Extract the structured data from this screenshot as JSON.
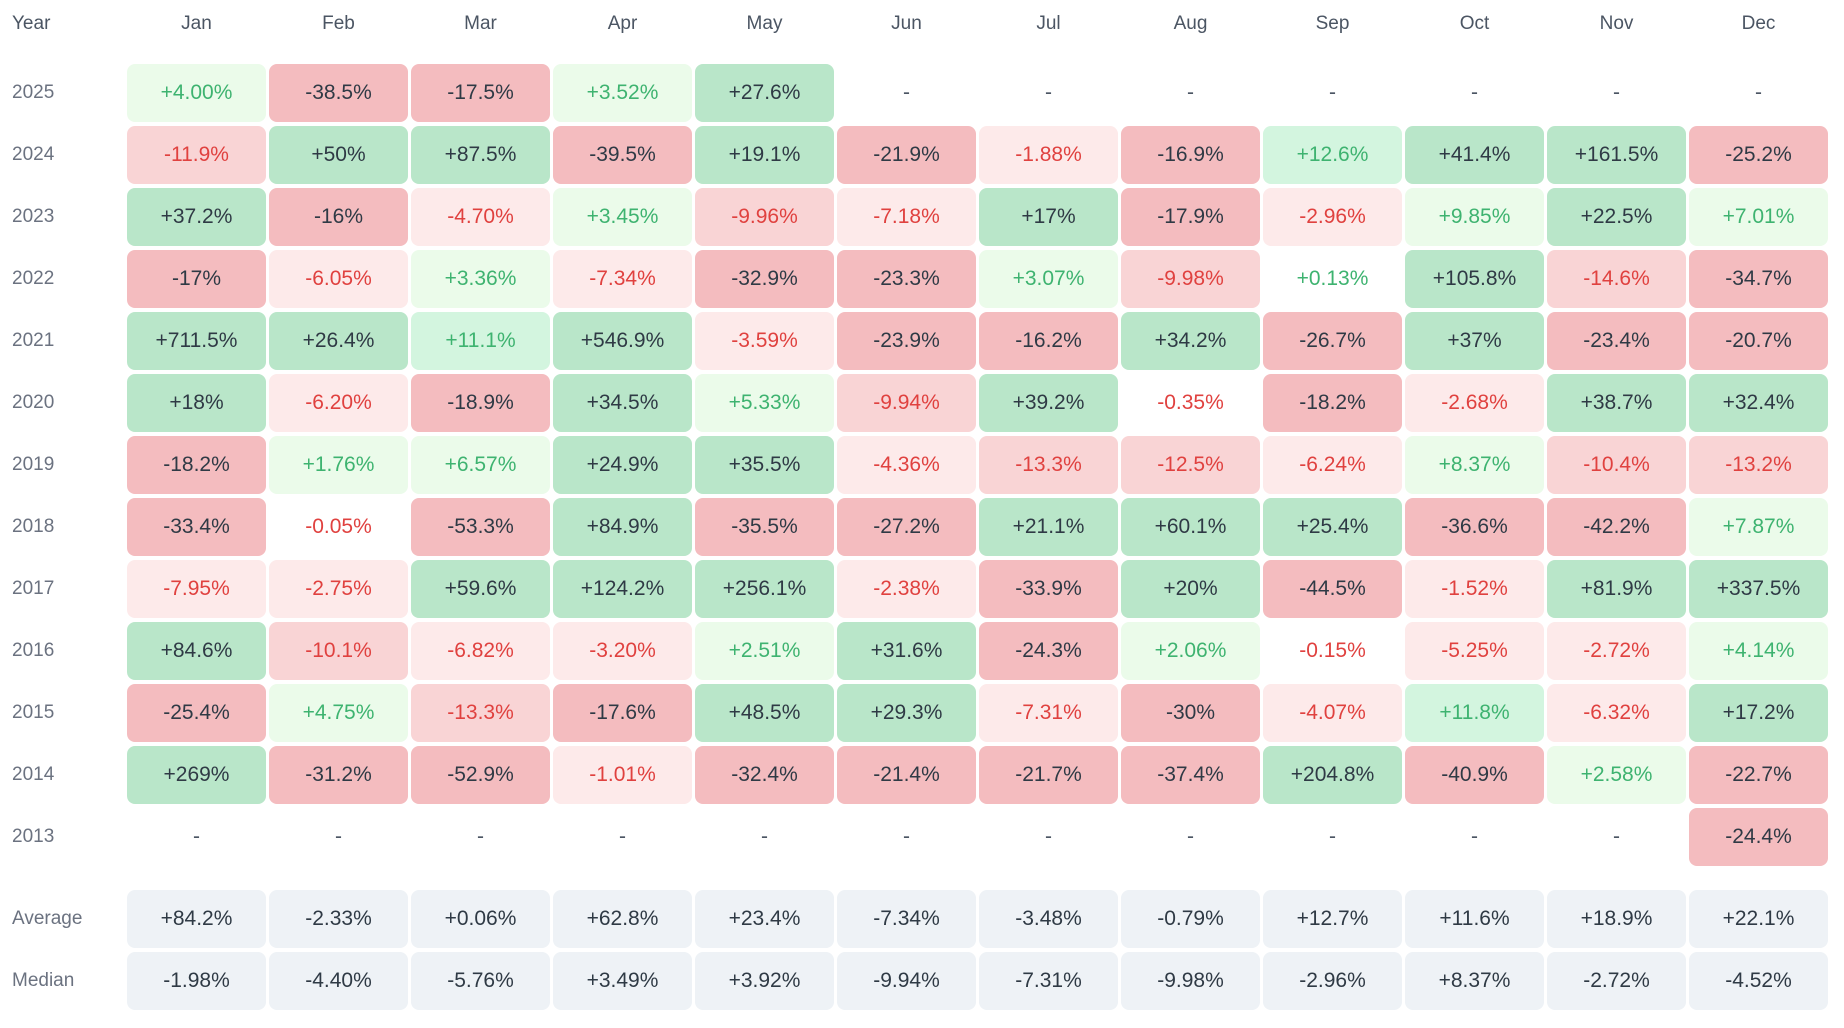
{
  "chart_data": {
    "type": "heatmap",
    "corner_label": "Year",
    "columns": [
      "Jan",
      "Feb",
      "Mar",
      "Apr",
      "May",
      "Jun",
      "Jul",
      "Aug",
      "Sep",
      "Oct",
      "Nov",
      "Dec"
    ],
    "rows": [
      {
        "label": "2025",
        "values": [
          "+4.00%",
          "-38.5%",
          "-17.5%",
          "+3.52%",
          "+27.6%",
          "-",
          "-",
          "-",
          "-",
          "-",
          "-",
          "-"
        ]
      },
      {
        "label": "2024",
        "values": [
          "-11.9%",
          "+50%",
          "+87.5%",
          "-39.5%",
          "+19.1%",
          "-21.9%",
          "-1.88%",
          "-16.9%",
          "+12.6%",
          "+41.4%",
          "+161.5%",
          "-25.2%"
        ]
      },
      {
        "label": "2023",
        "values": [
          "+37.2%",
          "-16%",
          "-4.70%",
          "+3.45%",
          "-9.96%",
          "-7.18%",
          "+17%",
          "-17.9%",
          "-2.96%",
          "+9.85%",
          "+22.5%",
          "+7.01%"
        ]
      },
      {
        "label": "2022",
        "values": [
          "-17%",
          "-6.05%",
          "+3.36%",
          "-7.34%",
          "-32.9%",
          "-23.3%",
          "+3.07%",
          "-9.98%",
          "+0.13%",
          "+105.8%",
          "-14.6%",
          "-34.7%"
        ]
      },
      {
        "label": "2021",
        "values": [
          "+711.5%",
          "+26.4%",
          "+11.1%",
          "+546.9%",
          "-3.59%",
          "-23.9%",
          "-16.2%",
          "+34.2%",
          "-26.7%",
          "+37%",
          "-23.4%",
          "-20.7%"
        ]
      },
      {
        "label": "2020",
        "values": [
          "+18%",
          "-6.20%",
          "-18.9%",
          "+34.5%",
          "+5.33%",
          "-9.94%",
          "+39.2%",
          "-0.35%",
          "-18.2%",
          "-2.68%",
          "+38.7%",
          "+32.4%"
        ]
      },
      {
        "label": "2019",
        "values": [
          "-18.2%",
          "+1.76%",
          "+6.57%",
          "+24.9%",
          "+35.5%",
          "-4.36%",
          "-13.3%",
          "-12.5%",
          "-6.24%",
          "+8.37%",
          "-10.4%",
          "-13.2%"
        ]
      },
      {
        "label": "2018",
        "values": [
          "-33.4%",
          "-0.05%",
          "-53.3%",
          "+84.9%",
          "-35.5%",
          "-27.2%",
          "+21.1%",
          "+60.1%",
          "+25.4%",
          "-36.6%",
          "-42.2%",
          "+7.87%"
        ]
      },
      {
        "label": "2017",
        "values": [
          "-7.95%",
          "-2.75%",
          "+59.6%",
          "+124.2%",
          "+256.1%",
          "-2.38%",
          "-33.9%",
          "+20%",
          "-44.5%",
          "-1.52%",
          "+81.9%",
          "+337.5%"
        ]
      },
      {
        "label": "2016",
        "values": [
          "+84.6%",
          "-10.1%",
          "-6.82%",
          "-3.20%",
          "+2.51%",
          "+31.6%",
          "-24.3%",
          "+2.06%",
          "-0.15%",
          "-5.25%",
          "-2.72%",
          "+4.14%"
        ]
      },
      {
        "label": "2015",
        "values": [
          "-25.4%",
          "+4.75%",
          "-13.3%",
          "-17.6%",
          "+48.5%",
          "+29.3%",
          "-7.31%",
          "-30%",
          "-4.07%",
          "+11.8%",
          "-6.32%",
          "+17.2%"
        ]
      },
      {
        "label": "2014",
        "values": [
          "+269%",
          "-31.2%",
          "-52.9%",
          "-1.01%",
          "-32.4%",
          "-21.4%",
          "-21.7%",
          "-37.4%",
          "+204.8%",
          "-40.9%",
          "+2.58%",
          "-22.7%"
        ]
      },
      {
        "label": "2013",
        "values": [
          "-",
          "-",
          "-",
          "-",
          "-",
          "-",
          "-",
          "-",
          "-",
          "-",
          "-",
          "-24.4%"
        ]
      }
    ],
    "summary_rows": [
      {
        "label": "Average",
        "values": [
          "+84.2%",
          "-2.33%",
          "+0.06%",
          "+62.8%",
          "+23.4%",
          "-7.34%",
          "-3.48%",
          "-0.79%",
          "+12.7%",
          "+11.6%",
          "+18.9%",
          "+22.1%"
        ]
      },
      {
        "label": "Median",
        "values": [
          "-1.98%",
          "-4.40%",
          "-5.76%",
          "+3.49%",
          "+3.92%",
          "-9.94%",
          "-7.31%",
          "-9.98%",
          "-2.96%",
          "+8.37%",
          "-2.72%",
          "-4.52%"
        ]
      }
    ],
    "colors": {
      "positive_text": "#3eb370",
      "negative_text": "#e0413f",
      "strong_text": "#2f3a45",
      "positive_fills": [
        "#ffffff",
        "#ebfbea",
        "#d3f5df",
        "#b9e6c9"
      ],
      "negative_fills": [
        "#ffffff",
        "#fdeaea",
        "#f9d4d5",
        "#f4bcbf"
      ],
      "summary_fill": "#eef2f6"
    }
  }
}
